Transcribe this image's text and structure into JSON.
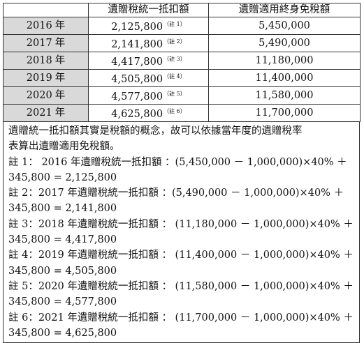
{
  "table": {
    "headers": [
      "",
      "遺贈稅統一抵扣額",
      "遺贈適用終身免稅額"
    ],
    "rows": [
      {
        "year": "2016",
        "suffix": "年",
        "amount": "2,125,800",
        "note": "（註 1）",
        "exemption": "5,450,000"
      },
      {
        "year": "2017",
        "suffix": "年",
        "amount": "2,141,800",
        "note": "（註 2）",
        "exemption": "5,490,000"
      },
      {
        "year": "2018",
        "suffix": "年",
        "amount": "4,417,800",
        "note": "（註 3）",
        "exemption": "11,180,000"
      },
      {
        "year": "2019",
        "suffix": "年",
        "amount": "4,505,800",
        "note": "（註 4）",
        "exemption": "11,400,000"
      },
      {
        "year": "2020",
        "suffix": "年",
        "amount": "4,577,800",
        "note": "（註 5）",
        "exemption": "11,580,000"
      },
      {
        "year": "2021",
        "suffix": "年",
        "amount": "4,625,800",
        "note": "（註 6）",
        "exemption": "11,700,000"
      }
    ]
  },
  "notes": {
    "lines": [
      "遺贈統一抵扣額其實是稅額的概念，故可以依據當年度的遺贈稅率",
      "表算出遺贈適用免稅額。",
      "註 1： 2016 年遺贈稅統一抵扣額 ：(5,450,000 － 1,000,000)×40% ＋",
      "345,800 = 2,125,800",
      "註 2：2017 年遺贈稅統一抵扣額 ：(5,490,000 － 1,000,000)×40% ＋",
      "345,800 = 2,141,800",
      "註 3：2018 年遺贈稅統一抵扣額 ： (11,180,000 － 1,000,000)×40% ＋",
      "345,800 = 4,417,800",
      "註 4：2019 年遺贈稅統一抵扣額 ： (11,400,000 － 1,000,000)×40% ＋",
      "345,800 = 4,505,800",
      "註 5：2020 年遺贈稅統一抵扣額 ： (11,580,000 － 1,000,000)×40% ＋",
      "345,800 = 4,577,800",
      "註 6：2021 年遺贈稅統一抵扣額 ： (11,700,000 － 1,000,000)×40% ＋",
      "345,800 = 4,625,800"
    ]
  }
}
